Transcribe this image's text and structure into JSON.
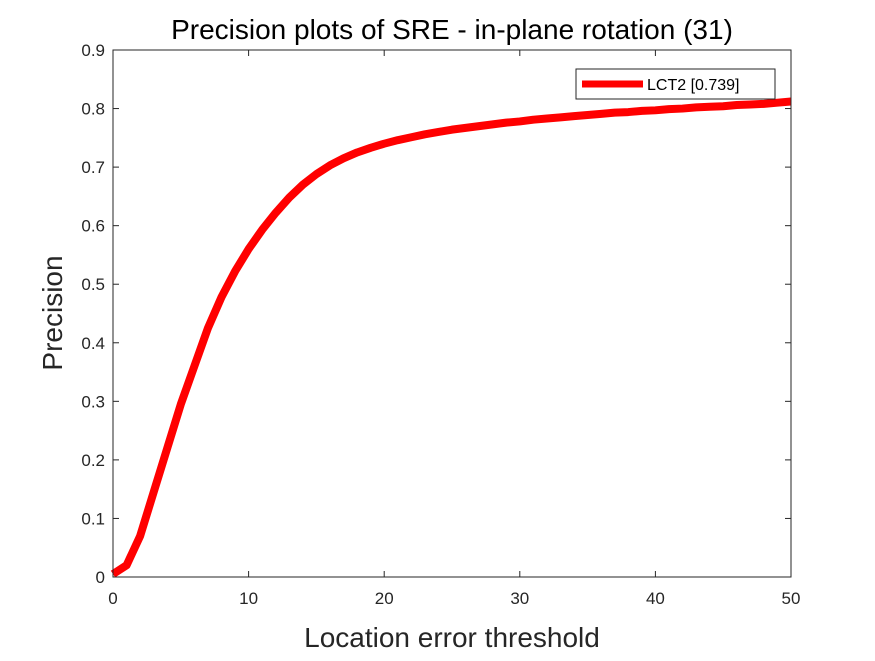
{
  "chart_data": {
    "type": "line",
    "title": "Precision plots of SRE - in-plane rotation (31)",
    "xlabel": "Location error threshold",
    "ylabel": "Precision",
    "xlim": [
      0,
      50
    ],
    "ylim": [
      0,
      0.9
    ],
    "xticks": [
      0,
      10,
      20,
      30,
      40,
      50
    ],
    "yticks": [
      0,
      0.1,
      0.2,
      0.3,
      0.4,
      0.5,
      0.6,
      0.7,
      0.8,
      0.9
    ],
    "grid": false,
    "legend_position": "top-right",
    "series": [
      {
        "name": "LCT2 [0.739]",
        "color": "#ff0000",
        "x": [
          0,
          1,
          2,
          3,
          4,
          5,
          6,
          7,
          8,
          9,
          10,
          11,
          12,
          13,
          14,
          15,
          16,
          17,
          18,
          19,
          20,
          21,
          22,
          23,
          24,
          25,
          26,
          27,
          28,
          29,
          30,
          31,
          32,
          33,
          34,
          35,
          36,
          37,
          38,
          39,
          40,
          41,
          42,
          43,
          44,
          45,
          46,
          47,
          48,
          49,
          50
        ],
        "y": [
          0.005,
          0.02,
          0.07,
          0.145,
          0.22,
          0.295,
          0.36,
          0.425,
          0.478,
          0.522,
          0.56,
          0.593,
          0.622,
          0.648,
          0.67,
          0.688,
          0.703,
          0.715,
          0.725,
          0.733,
          0.74,
          0.746,
          0.751,
          0.756,
          0.76,
          0.764,
          0.767,
          0.77,
          0.773,
          0.776,
          0.778,
          0.781,
          0.783,
          0.785,
          0.787,
          0.789,
          0.791,
          0.793,
          0.794,
          0.796,
          0.797,
          0.799,
          0.8,
          0.802,
          0.803,
          0.804,
          0.806,
          0.807,
          0.808,
          0.81,
          0.812
        ]
      }
    ]
  }
}
